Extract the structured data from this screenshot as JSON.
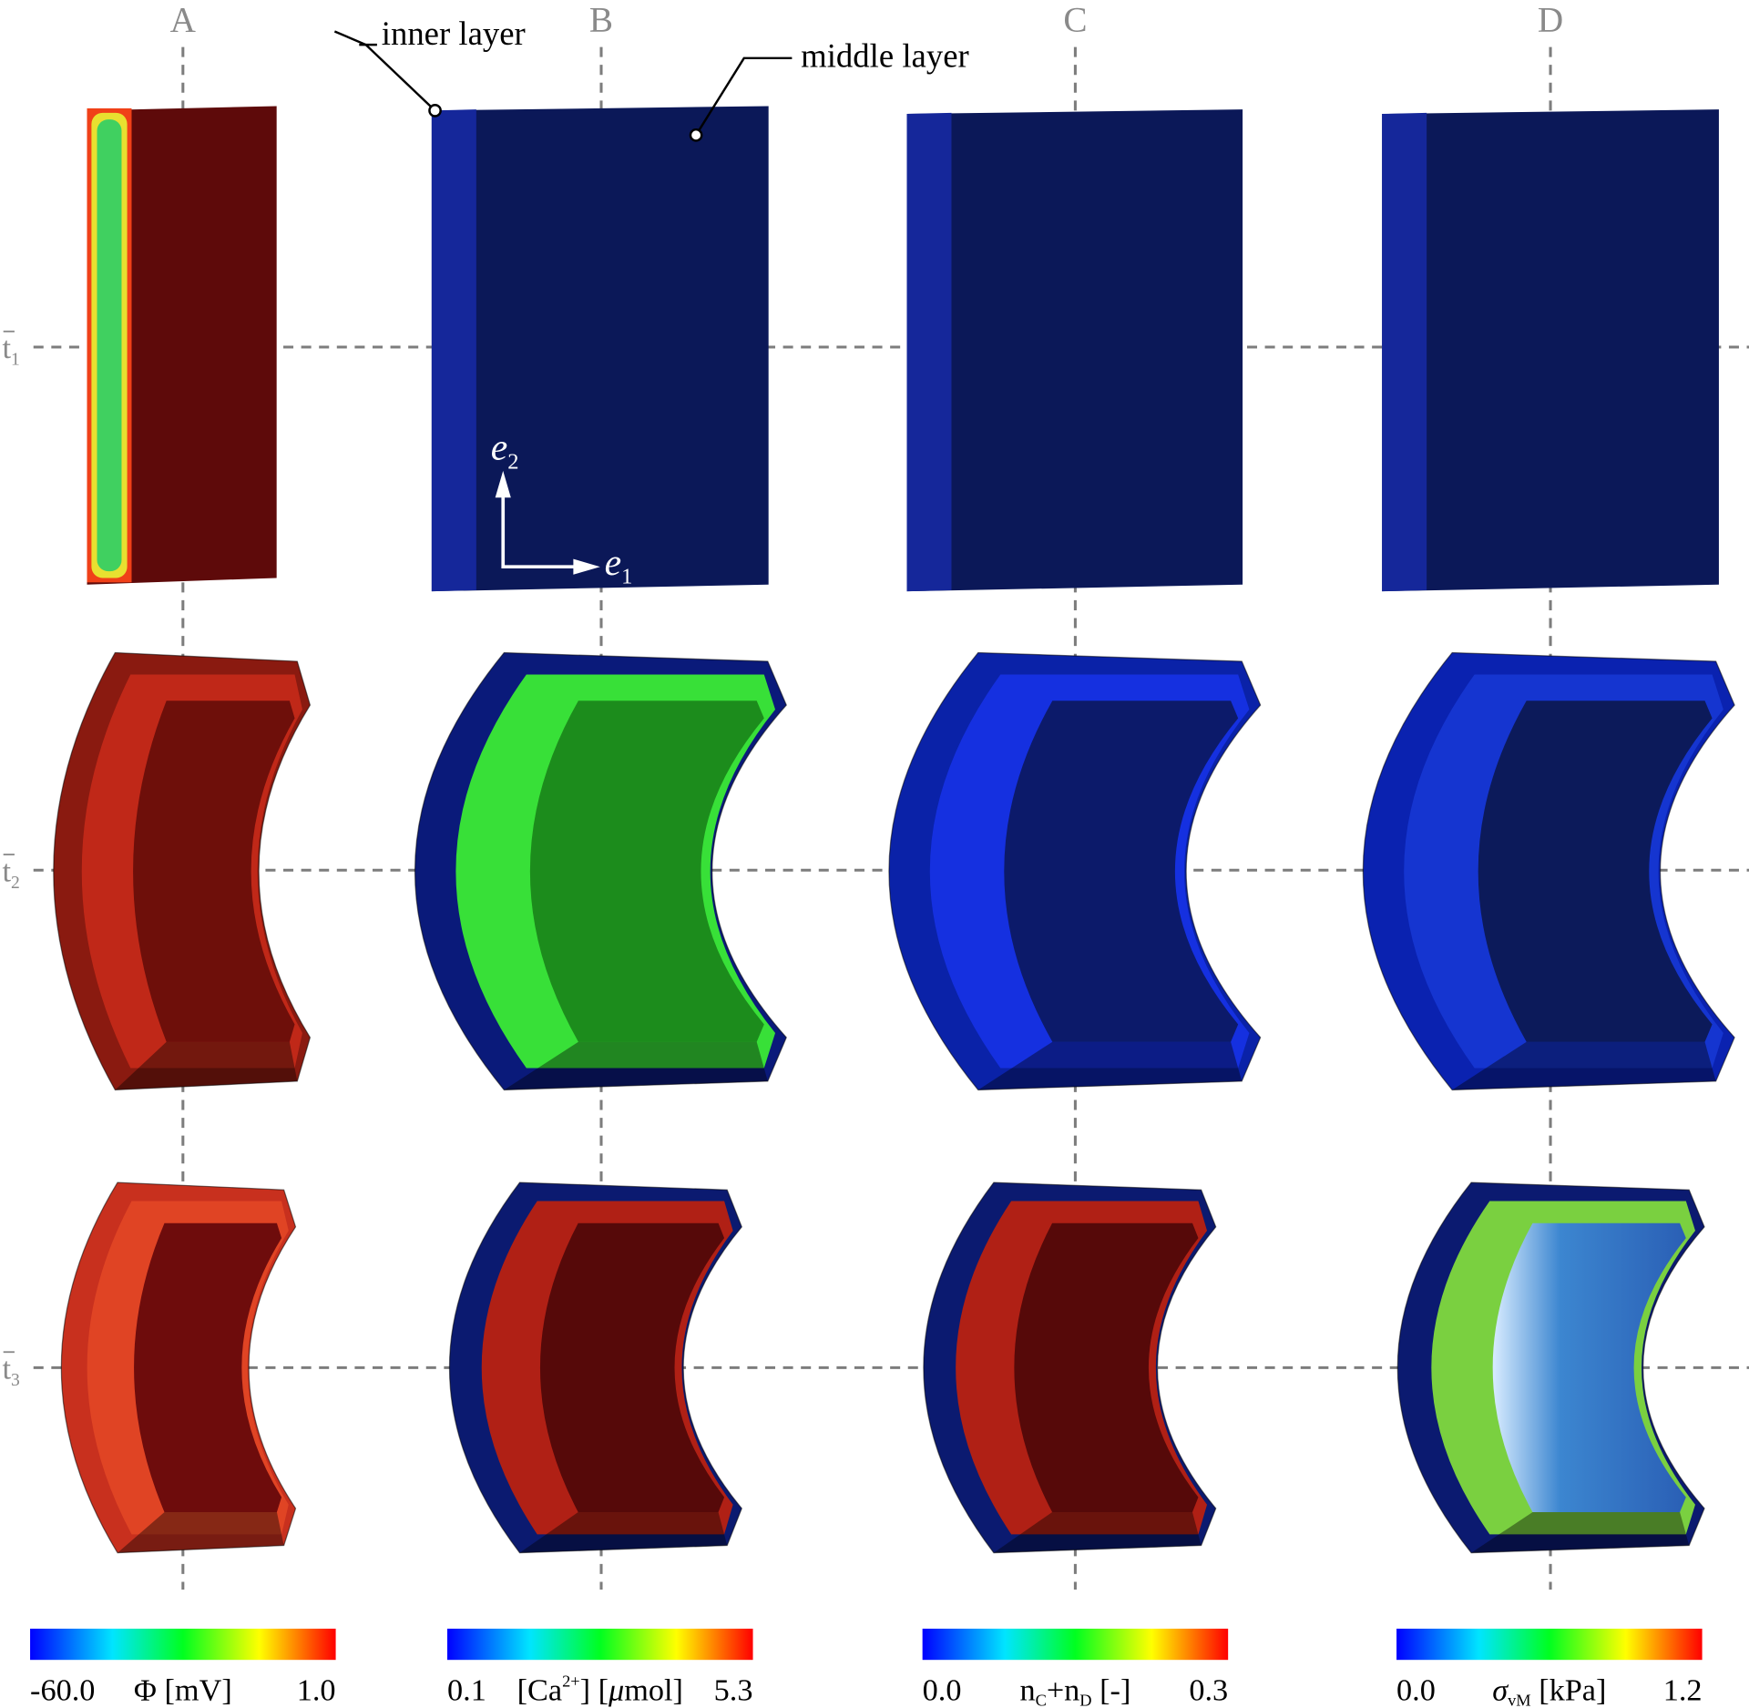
{
  "columns": [
    "A",
    "B",
    "C",
    "D"
  ],
  "rows": [
    {
      "symbol": "t",
      "sub": "1"
    },
    {
      "symbol": "t",
      "sub": "2"
    },
    {
      "symbol": "t",
      "sub": "3"
    }
  ],
  "annotations": {
    "inner": "inner layer",
    "middle": "middle layer"
  },
  "axes": {
    "e2": {
      "symbol": "e",
      "sub": "2"
    },
    "e1": {
      "symbol": "e",
      "sub": "1"
    }
  },
  "colorbars": [
    {
      "min": "-60.0",
      "label": [
        {
          "text": "Φ [mV]"
        }
      ],
      "max": "1.0"
    },
    {
      "min": "0.1",
      "label": [
        {
          "text": "[Ca"
        },
        {
          "sup": "2+"
        },
        {
          "text": "] ["
        },
        {
          "italic": "μ"
        },
        {
          "text": "mol]"
        }
      ],
      "max": "5.3"
    },
    {
      "min": "0.0",
      "label": [
        {
          "text": "n"
        },
        {
          "sub": "C"
        },
        {
          "text": "+n"
        },
        {
          "sub": "D"
        },
        {
          "text": " [-]"
        }
      ],
      "max": "0.3"
    },
    {
      "min": "0.0",
      "label": [
        {
          "italic": "σ"
        },
        {
          "sub": "vM"
        },
        {
          "text": " [kPa]"
        }
      ],
      "max": "1.2"
    }
  ]
}
